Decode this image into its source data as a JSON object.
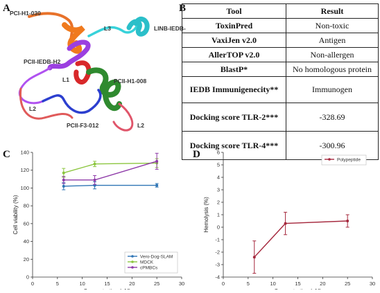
{
  "panels": {
    "a": "A",
    "b": "B",
    "c": "C",
    "d": "D"
  },
  "protein_labels": {
    "pci_h1_030": "PCI-H1-030",
    "l3": "L3",
    "linb_iedb_f": "LINB-IEDB-F",
    "pcii_iedb_h2": "PCII-IEDB-H2",
    "l1": "L1",
    "pcii_h1_008": "PCII-H1-008",
    "l2_left": "L2",
    "pcii_f3_012": "PCII-F3-012",
    "l2_right": "L2"
  },
  "table": {
    "headers": [
      "Tool",
      "Result"
    ],
    "rows": [
      {
        "tool": "ToxinPred",
        "result": "Non-toxic"
      },
      {
        "tool": "VaxiJen v2.0",
        "result": "Antigen"
      },
      {
        "tool": "AllerTOP v2.0",
        "result": "Non-allergen"
      },
      {
        "tool": "BlastP*",
        "result": "No homologous protein"
      },
      {
        "tool": "IEDB Immunigenecity**",
        "result": "Immunogen"
      },
      {
        "tool": "Docking score TLR-2***",
        "result": "-328.69"
      },
      {
        "tool": "Docking score TLR-4***",
        "result": "-300.96"
      }
    ]
  },
  "chart_data": [
    {
      "type": "line",
      "panel": "C",
      "xlabel": "Concentration (nM)",
      "ylabel": "Cell viability (%)",
      "xlim": [
        0,
        30
      ],
      "ylim": [
        0,
        140
      ],
      "xticks": [
        0,
        5,
        10,
        15,
        20,
        25,
        30
      ],
      "yticks": [
        0,
        20,
        40,
        60,
        80,
        100,
        120,
        140
      ],
      "x": [
        6.25,
        12.5,
        25
      ],
      "legend_position": "bottom-right",
      "series": [
        {
          "name": "Vero-Dog-SLAM",
          "color": "#2f75b5",
          "values": [
            102,
            103,
            103
          ],
          "errors": [
            4,
            4,
            2
          ]
        },
        {
          "name": "MDCK",
          "color": "#8cc63f",
          "values": [
            117,
            127,
            128
          ],
          "errors": [
            5,
            3,
            5
          ]
        },
        {
          "name": "cPMBCs",
          "color": "#8e3aa8",
          "values": [
            109,
            109,
            130
          ],
          "errors": [
            4,
            5,
            9
          ]
        }
      ]
    },
    {
      "type": "line",
      "panel": "D",
      "xlabel": "Concentration (nM)",
      "ylabel": "Hemolysis (%)",
      "xlim": [
        0,
        30
      ],
      "ylim": [
        -4,
        6
      ],
      "xticks": [
        0,
        5,
        10,
        15,
        20,
        25,
        30
      ],
      "yticks": [
        -4,
        -3,
        -2,
        -1,
        0,
        1,
        2,
        3,
        4,
        5,
        6
      ],
      "x": [
        6.25,
        12.5,
        25
      ],
      "legend_position": "top-right",
      "series": [
        {
          "name": "Polypeptide",
          "color": "#a5283d",
          "values": [
            -2.4,
            0.3,
            0.5
          ],
          "errors": [
            1.3,
            0.9,
            0.5
          ]
        }
      ]
    }
  ]
}
